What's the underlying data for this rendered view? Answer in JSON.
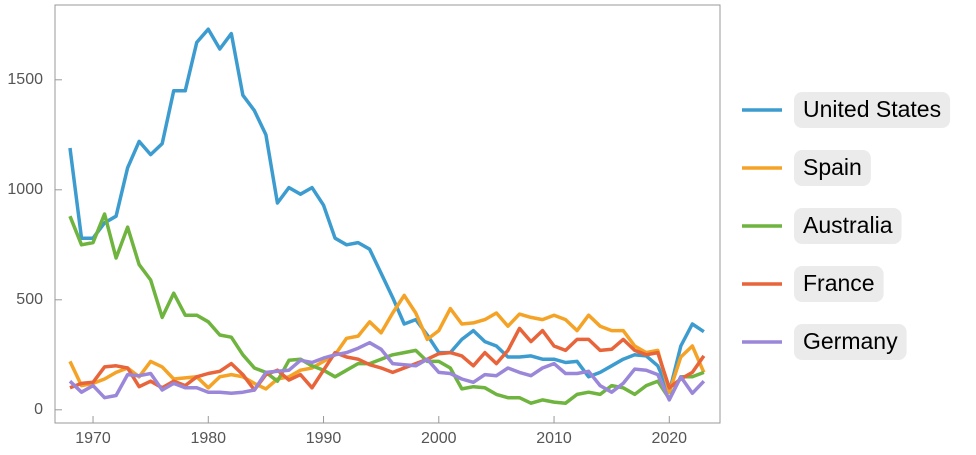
{
  "chart_data": {
    "type": "line",
    "x": [
      1968,
      1969,
      1970,
      1971,
      1972,
      1973,
      1974,
      1975,
      1976,
      1977,
      1978,
      1979,
      1980,
      1981,
      1982,
      1983,
      1984,
      1985,
      1986,
      1987,
      1988,
      1989,
      1990,
      1991,
      1992,
      1993,
      1994,
      1995,
      1996,
      1997,
      1998,
      1999,
      2000,
      2001,
      2002,
      2003,
      2004,
      2005,
      2006,
      2007,
      2008,
      2009,
      2010,
      2011,
      2012,
      2013,
      2014,
      2015,
      2016,
      2017,
      2018,
      2019,
      2020,
      2021,
      2022,
      2023
    ],
    "xlim": [
      1966.7,
      2024.4
    ],
    "xticks": [
      1970,
      1980,
      1990,
      2000,
      2010,
      2020
    ],
    "ylim": [
      -60,
      1840
    ],
    "yticks": [
      0,
      500,
      1000,
      1500
    ],
    "series": [
      {
        "name": "United States",
        "color": "#3d9ccf",
        "values": [
          1190,
          780,
          780,
          850,
          880,
          1100,
          1220,
          1160,
          1210,
          1450,
          1450,
          1670,
          1730,
          1640,
          1710,
          1430,
          1360,
          1250,
          940,
          1010,
          980,
          1010,
          930,
          780,
          750,
          760,
          730,
          620,
          510,
          390,
          410,
          340,
          260,
          260,
          320,
          360,
          310,
          290,
          240,
          240,
          245,
          230,
          230,
          215,
          220,
          150,
          170,
          200,
          230,
          250,
          245,
          200,
          80,
          290,
          390,
          355
        ]
      },
      {
        "name": "Spain",
        "color": "#f5a326",
        "values": [
          220,
          110,
          120,
          140,
          170,
          190,
          150,
          220,
          195,
          140,
          145,
          150,
          100,
          150,
          160,
          150,
          120,
          95,
          140,
          150,
          180,
          190,
          220,
          250,
          325,
          335,
          400,
          350,
          440,
          520,
          440,
          320,
          360,
          460,
          390,
          395,
          410,
          440,
          380,
          435,
          420,
          410,
          430,
          410,
          360,
          430,
          380,
          360,
          360,
          290,
          260,
          270,
          80,
          240,
          290,
          170
        ]
      },
      {
        "name": "Australia",
        "color": "#6fb43f",
        "values": [
          880,
          750,
          760,
          890,
          690,
          830,
          660,
          590,
          420,
          530,
          430,
          430,
          400,
          340,
          330,
          250,
          190,
          170,
          130,
          225,
          230,
          200,
          180,
          150,
          180,
          210,
          210,
          230,
          250,
          260,
          270,
          220,
          220,
          190,
          95,
          105,
          100,
          70,
          55,
          55,
          30,
          45,
          35,
          30,
          70,
          80,
          70,
          110,
          100,
          70,
          110,
          130,
          50,
          150,
          150,
          170
        ]
      },
      {
        "name": "France",
        "color": "#e8643a",
        "values": [
          100,
          120,
          125,
          195,
          200,
          190,
          105,
          130,
          100,
          130,
          110,
          150,
          165,
          175,
          210,
          160,
          90,
          160,
          180,
          135,
          160,
          100,
          180,
          260,
          240,
          230,
          205,
          190,
          170,
          190,
          210,
          230,
          255,
          260,
          245,
          200,
          260,
          210,
          270,
          370,
          310,
          360,
          290,
          270,
          320,
          320,
          270,
          275,
          320,
          270,
          250,
          260,
          100,
          140,
          170,
          245
        ]
      },
      {
        "name": "Germany",
        "color": "#9b87d9",
        "values": [
          130,
          80,
          110,
          55,
          65,
          160,
          155,
          165,
          90,
          120,
          100,
          100,
          80,
          80,
          75,
          80,
          90,
          170,
          175,
          180,
          225,
          215,
          235,
          250,
          260,
          280,
          305,
          275,
          210,
          205,
          200,
          230,
          170,
          165,
          140,
          125,
          160,
          155,
          190,
          170,
          155,
          190,
          210,
          165,
          165,
          175,
          110,
          80,
          120,
          185,
          180,
          160,
          45,
          150,
          75,
          130
        ]
      }
    ]
  }
}
